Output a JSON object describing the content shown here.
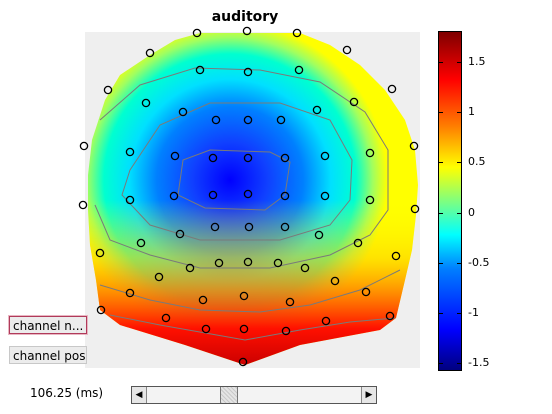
{
  "figure": {
    "title": "auditory"
  },
  "colorbar": {
    "min": -1.55,
    "max": 1.8,
    "ticks": [
      "1.5",
      "1",
      "0.5",
      "0",
      "-0.5",
      "-1",
      "-1.5"
    ]
  },
  "controls": {
    "channel_names_button": "channel n...",
    "channel_pos_button": "channel pos",
    "time_label": "106.25 (ms)",
    "slider_fraction": 0.38
  }
}
